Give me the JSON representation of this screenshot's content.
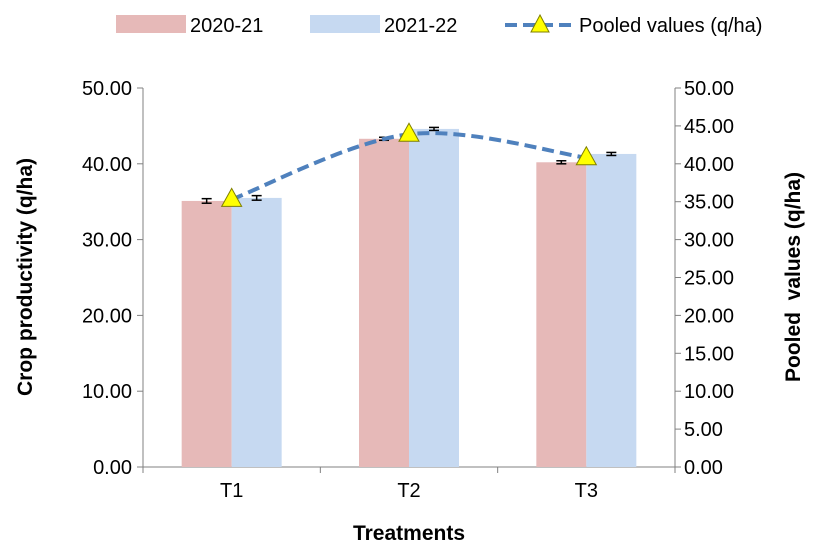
{
  "chart_data": {
    "type": "bar",
    "categories": [
      "T1",
      "T2",
      "T3"
    ],
    "series": [
      {
        "name": "2020-21",
        "kind": "bar",
        "axis": "left",
        "color": "#e6b9b8",
        "values": [
          35.1,
          43.3,
          40.2
        ],
        "errors": [
          0.3,
          0.2,
          0.2
        ]
      },
      {
        "name": "2021-22",
        "kind": "bar",
        "axis": "left",
        "color": "#c6d9f1",
        "values": [
          35.5,
          44.6,
          41.3
        ],
        "errors": [
          0.3,
          0.2,
          0.2
        ]
      },
      {
        "name": "Pooled values (q/ha)",
        "kind": "line",
        "axis": "right",
        "color": "#4f81bd",
        "marker_color": "#ffff00",
        "values": [
          35.3,
          43.9,
          40.8
        ]
      }
    ],
    "xlabel": "Treatments",
    "ylabel": "Crop productivity (q/ha)",
    "y2label": "Pooled  values (q/ha)",
    "ylim": [
      0,
      50
    ],
    "y2lim": [
      0,
      50
    ],
    "yticks": [
      "0.00",
      "10.00",
      "20.00",
      "30.00",
      "40.00",
      "50.00"
    ],
    "y2ticks": [
      "0.00",
      "5.00",
      "10.00",
      "15.00",
      "20.00",
      "25.00",
      "30.00",
      "35.00",
      "40.00",
      "45.00",
      "50.00"
    ],
    "legend_position": "top",
    "grid": false
  }
}
